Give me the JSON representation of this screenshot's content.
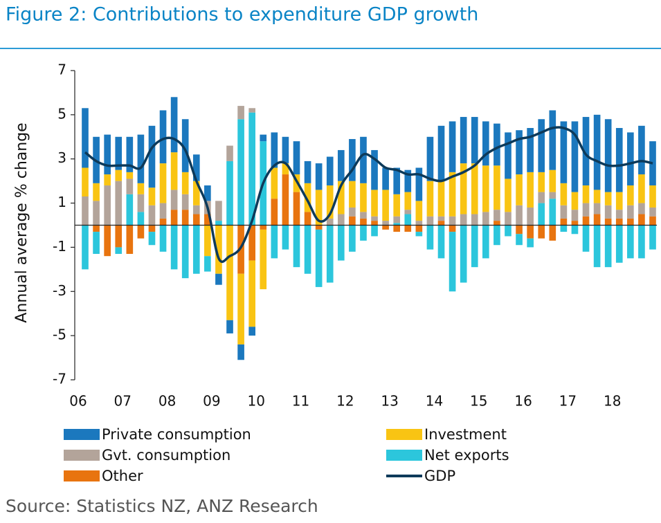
{
  "chart_data": {
    "type": "stacked-bar-line",
    "title": "Figure 2: Contributions to expenditure GDP growth",
    "y_label": "Annual average % change",
    "source": "Source: Statistics NZ, ANZ Research",
    "categories": [
      "06",
      null,
      null,
      null,
      "07",
      null,
      null,
      null,
      "08",
      null,
      null,
      null,
      "09",
      null,
      null,
      null,
      "10",
      null,
      null,
      null,
      "11",
      null,
      null,
      null,
      "12",
      null,
      null,
      null,
      "13",
      null,
      null,
      null,
      "14",
      null,
      null,
      null,
      "15",
      null,
      null,
      null,
      "16",
      null,
      null,
      null,
      "17",
      null,
      null,
      null,
      "18",
      null,
      null,
      null
    ],
    "series": [
      {
        "name": "Private consumption",
        "color": "#1b78be",
        "values": [
          2.7,
          2.1,
          1.8,
          1.5,
          1.6,
          2.2,
          2.8,
          2.4,
          2.5,
          2.4,
          1.2,
          0.7,
          -0.5,
          -0.6,
          -0.7,
          -0.4,
          0.3,
          1.6,
          1.2,
          1.5,
          1.0,
          1.2,
          1.3,
          1.4,
          1.9,
          2.1,
          1.8,
          1.0,
          1.2,
          1.0,
          1.5,
          2.0,
          2.5,
          2.3,
          2.1,
          2.1,
          2.0,
          1.9,
          2.1,
          2.0,
          2.0,
          2.4,
          2.7,
          2.8,
          3.2,
          3.1,
          3.4,
          3.3,
          2.9,
          2.4,
          2.2,
          2.0
        ]
      },
      {
        "name": "Investment",
        "color": "#f9c413",
        "values": [
          1.3,
          0.8,
          0.5,
          0.5,
          0.3,
          0.5,
          0.8,
          1.8,
          1.7,
          1.0,
          1.1,
          -1.4,
          -2.2,
          -4.3,
          -3.2,
          -3.0,
          -2.7,
          1.4,
          0.5,
          0.8,
          1.3,
          1.6,
          1.5,
          1.5,
          1.2,
          1.3,
          1.2,
          1.4,
          1.0,
          0.8,
          0.9,
          1.6,
          1.6,
          2.0,
          2.3,
          2.3,
          2.1,
          2.0,
          1.5,
          1.4,
          1.6,
          0.9,
          1.0,
          1.0,
          0.8,
          0.8,
          0.6,
          0.6,
          0.8,
          0.9,
          1.3,
          1.0
        ]
      },
      {
        "name": "Gvt. consumption",
        "color": "#b3a49a",
        "values": [
          1.3,
          1.1,
          1.8,
          2.0,
          0.7,
          0.8,
          0.9,
          0.7,
          0.9,
          0.7,
          0.4,
          0.6,
          0.9,
          0.7,
          0.6,
          0.2,
          0,
          0,
          0,
          0,
          0,
          0,
          0.3,
          0.5,
          0.4,
          0.3,
          0.2,
          0.2,
          0.3,
          0.2,
          0.2,
          0.4,
          0.2,
          0.4,
          0.5,
          0.5,
          0.6,
          0.5,
          0.6,
          0.9,
          0.8,
          0.5,
          0.3,
          0.6,
          0.5,
          0.6,
          0.5,
          0.6,
          0.4,
          0.6,
          0.5,
          0.4
        ]
      },
      {
        "name": "Net exports",
        "color": "#2cc6dc",
        "values": [
          -2.0,
          -1.0,
          0,
          -0.3,
          1.4,
          0.6,
          -0.6,
          -1.2,
          -2.0,
          -2.4,
          -2.2,
          -0.7,
          0.2,
          2.9,
          4.8,
          5.1,
          3.8,
          -1.5,
          -1.1,
          -1.9,
          -2.2,
          -2.6,
          -2.6,
          -1.6,
          -1.2,
          -0.7,
          -0.5,
          0,
          0.1,
          0.5,
          -0.2,
          -1.1,
          -1.5,
          -2.7,
          -2.6,
          -1.9,
          -1.5,
          -0.9,
          -0.5,
          -0.5,
          -0.4,
          1.0,
          1.2,
          -0.3,
          -0.4,
          -1.2,
          -1.9,
          -1.9,
          -1.7,
          -1.5,
          -1.5,
          -1.1
        ]
      },
      {
        "name": "Other",
        "color": "#e8740f",
        "values": [
          0,
          -0.3,
          -1.4,
          -1.0,
          -1.3,
          -0.6,
          -0.3,
          0.3,
          0.7,
          0.7,
          0.5,
          0.5,
          0,
          0,
          -2.2,
          -1.6,
          -0.2,
          1.2,
          2.3,
          1.5,
          0.6,
          -0.2,
          0,
          0,
          0.4,
          0.3,
          0.2,
          -0.2,
          -0.3,
          -0.3,
          -0.3,
          0,
          0.2,
          -0.3,
          0,
          0,
          0,
          0.2,
          0,
          -0.4,
          -0.6,
          -0.6,
          -0.7,
          0.3,
          0.2,
          0.4,
          0.5,
          0.3,
          0.3,
          0.3,
          0.5,
          0.4
        ]
      }
    ],
    "line_series": {
      "name": "GDP",
      "color": "#0d3a5a",
      "values": [
        3.3,
        2.9,
        2.7,
        2.7,
        2.7,
        2.6,
        3.5,
        3.9,
        3.9,
        3.4,
        2.0,
        0.8,
        -1.5,
        -1.4,
        -1.0,
        0.2,
        1.9,
        2.7,
        2.8,
        2.0,
        1.1,
        0.2,
        0.5,
        1.8,
        2.5,
        3.2,
        3.0,
        2.6,
        2.5,
        2.3,
        2.3,
        2.1,
        2.0,
        2.2,
        2.4,
        2.7,
        3.2,
        3.5,
        3.7,
        3.9,
        4.0,
        4.2,
        4.4,
        4.4,
        4.1,
        3.2,
        2.9,
        2.7,
        2.7,
        2.8,
        2.9,
        2.8
      ]
    },
    "ylim": [
      -7,
      7
    ],
    "yticks": [
      -7,
      -5,
      -3,
      -1,
      1,
      3,
      5,
      7
    ]
  }
}
